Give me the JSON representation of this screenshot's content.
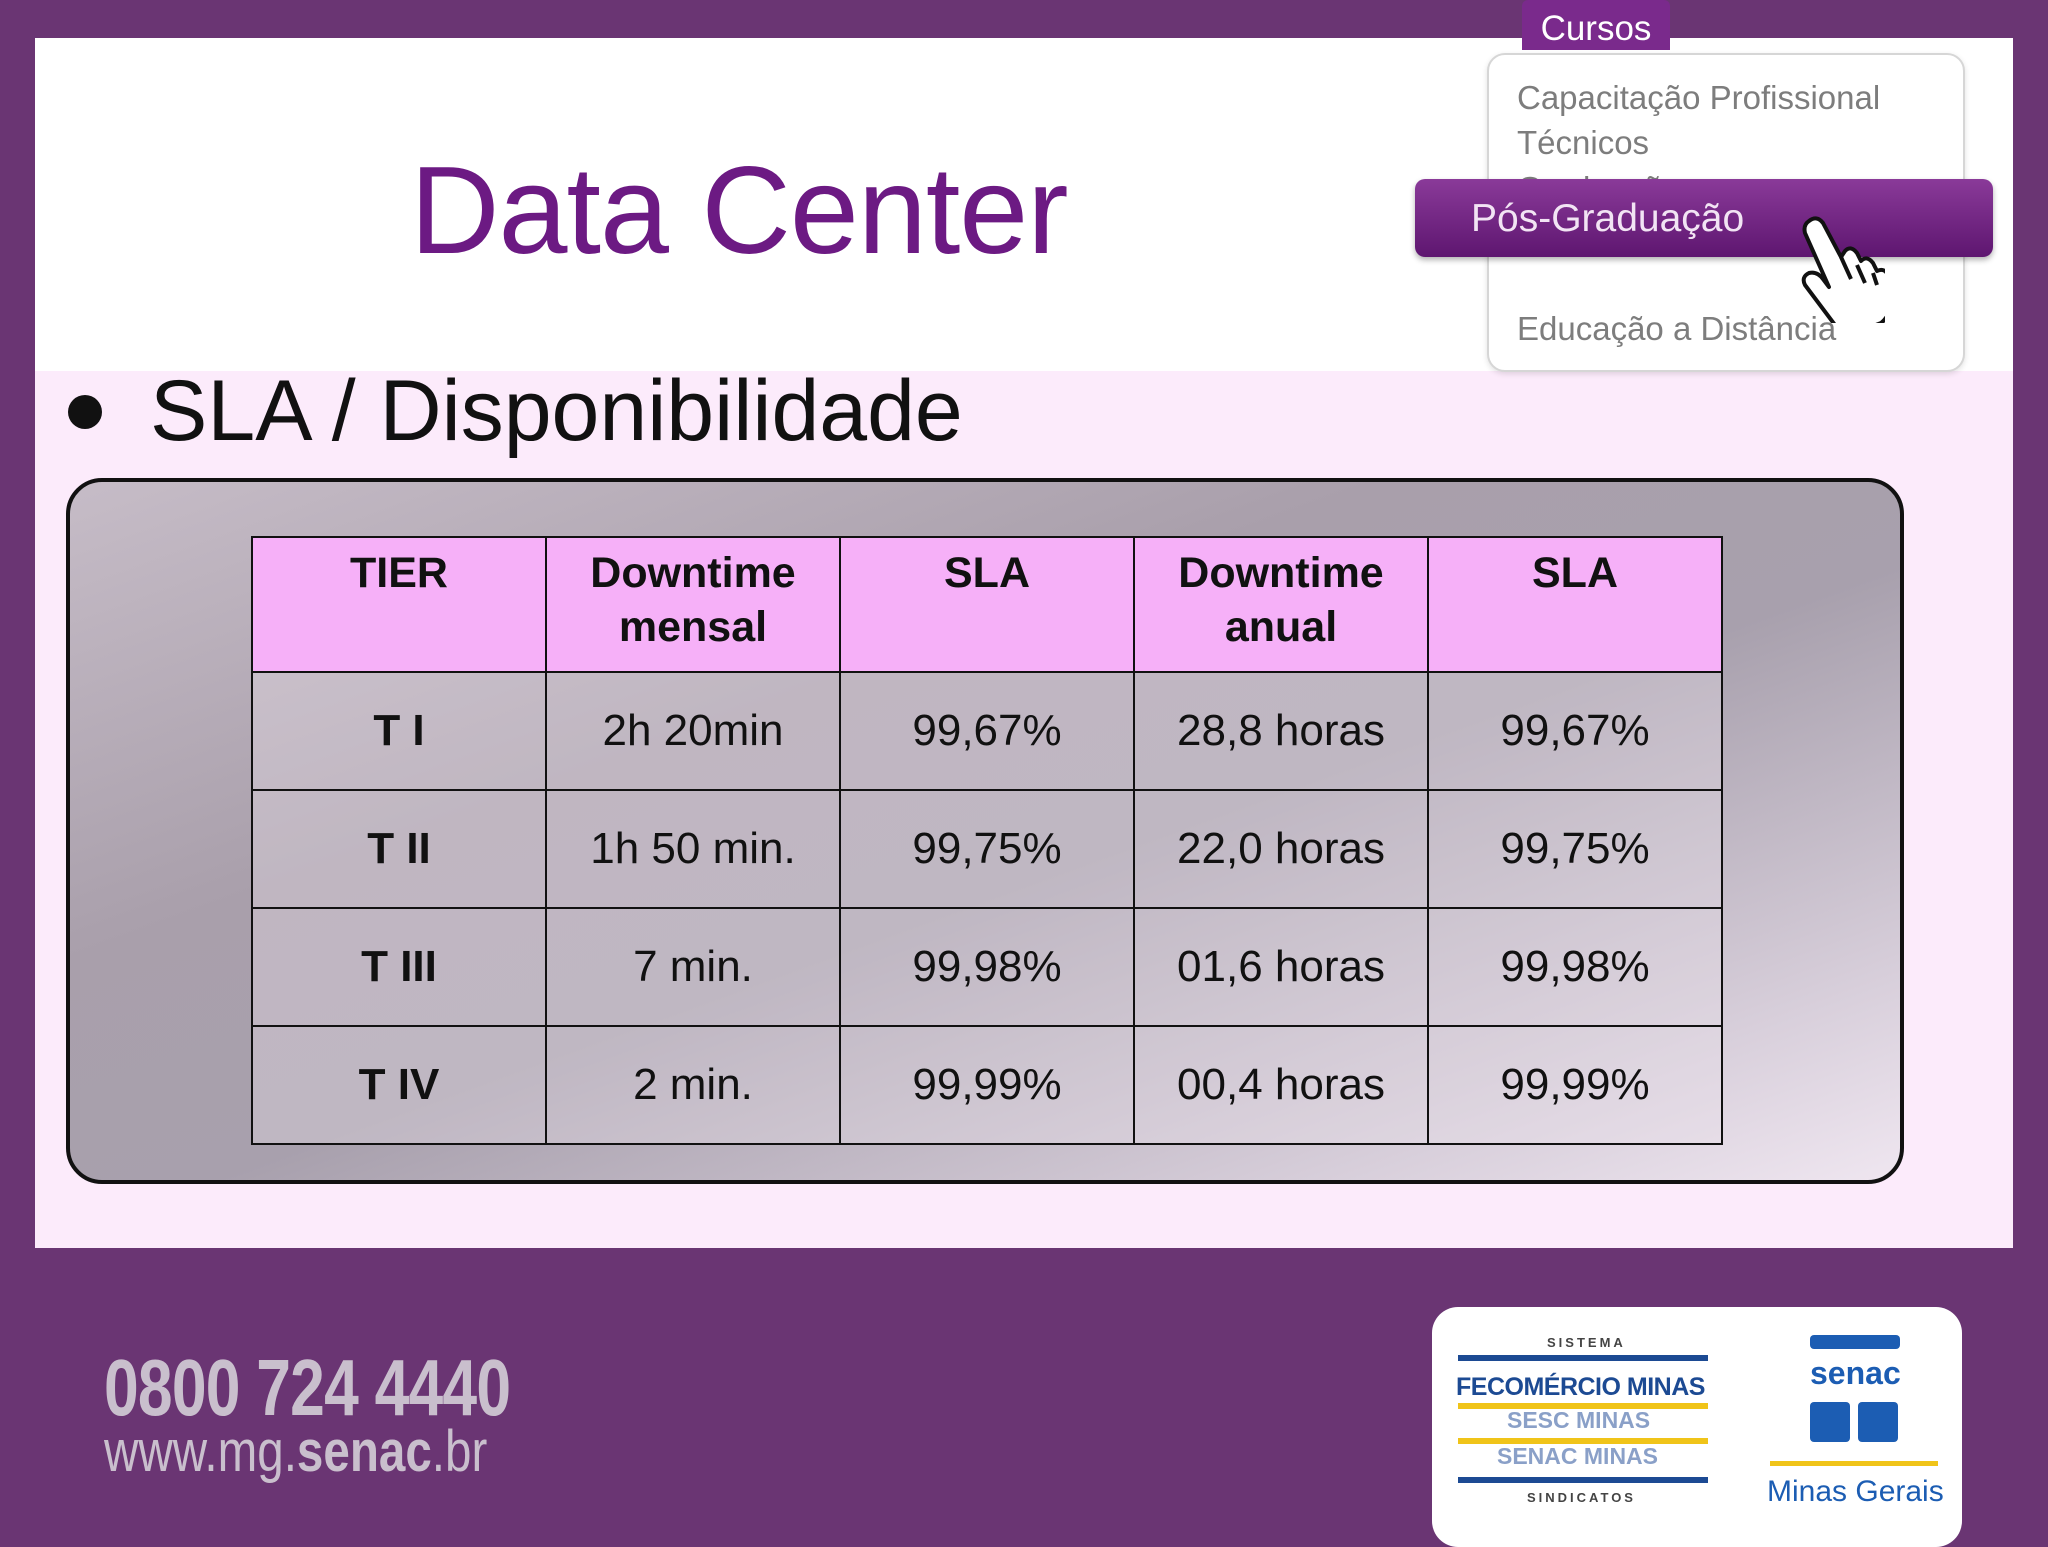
{
  "slide": {
    "title": "Data Center",
    "bullet": "SLA / Disponibilidade"
  },
  "menu": {
    "tab_label": "Cursos",
    "items": [
      "Capacitação Profissional",
      "Técnicos",
      "Graduação",
      "Pós-Graduação",
      "Educação a Distância"
    ],
    "active_index": 3
  },
  "table": {
    "headers": [
      {
        "line1": "TIER",
        "line2": ""
      },
      {
        "line1": "Downtime",
        "line2": "mensal"
      },
      {
        "line1": "SLA",
        "line2": ""
      },
      {
        "line1": "Downtime",
        "line2": "anual"
      },
      {
        "line1": "SLA",
        "line2": ""
      }
    ],
    "rows": [
      [
        "T I",
        "2h 20min",
        "99,67%",
        "28,8 horas",
        "99,67%"
      ],
      [
        "T II",
        "1h 50 min.",
        "99,75%",
        "22,0 horas",
        "99,75%"
      ],
      [
        "T III",
        "7 min.",
        "99,98%",
        "01,6 horas",
        "99,98%"
      ],
      [
        "T IV",
        "2 min.",
        "99,99%",
        "00,4 horas",
        "99,99%"
      ]
    ]
  },
  "footer": {
    "phone": "0800 724 4440",
    "url_prefix": "www.mg.",
    "url_bold": "senac",
    "url_suffix": ".br",
    "logo": {
      "sistema": "SISTEMA",
      "fecomercio": "FECOMÉRCIO MINAS",
      "sesc": "SESC MINAS",
      "senac": "SENAC MINAS",
      "sindicatos": "SINDICATOS",
      "senac_word": "senac",
      "region": "Minas Gerais"
    }
  },
  "colors": {
    "frame": "#6a3573",
    "title": "#6c1a83",
    "header_cell": "#f6b0f8",
    "content_band": "#fcebfb"
  }
}
